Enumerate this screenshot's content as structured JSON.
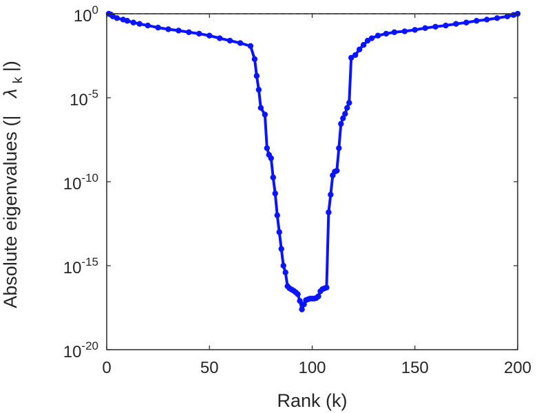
{
  "chart_data": {
    "type": "line",
    "title": "",
    "xlabel": "Rank (k)",
    "ylabel_main": "Absolute eigenvalues (|",
    "ylabel_symbol": "λ",
    "ylabel_sub": "k",
    "ylabel_tail": "|)",
    "xlim": [
      0,
      200
    ],
    "ylim": [
      1e-20,
      1
    ],
    "yscale": "log",
    "x_ticks": [
      0,
      50,
      100,
      150,
      200
    ],
    "y_ticks": [
      {
        "value": 1e-20,
        "base": "10",
        "exp": "-20"
      },
      {
        "value": 1e-15,
        "base": "10",
        "exp": "-15"
      },
      {
        "value": 1e-10,
        "base": "10",
        "exp": "-10"
      },
      {
        "value": 1e-05,
        "base": "10",
        "exp": "-5"
      },
      {
        "value": 1,
        "base": "10",
        "exp": "0"
      }
    ],
    "grid": false,
    "reference_line": {
      "y": 1,
      "style": "dashed",
      "color": "#000000"
    },
    "series": [
      {
        "color": "#0a14ff",
        "marker": "circle",
        "points": [
          [
            1,
            1.0
          ],
          [
            2,
            0.9
          ],
          [
            3,
            0.7
          ],
          [
            5,
            0.55
          ],
          [
            8,
            0.45
          ],
          [
            10,
            0.38
          ],
          [
            13,
            0.3
          ],
          [
            16,
            0.25
          ],
          [
            20,
            0.2
          ],
          [
            25,
            0.15
          ],
          [
            30,
            0.12
          ],
          [
            35,
            0.1
          ],
          [
            40,
            0.08
          ],
          [
            45,
            0.065
          ],
          [
            50,
            0.05
          ],
          [
            55,
            0.035
          ],
          [
            60,
            0.025
          ],
          [
            65,
            0.018
          ],
          [
            70,
            0.012
          ],
          [
            72,
            0.002
          ],
          [
            73,
            0.0002
          ],
          [
            74,
            3e-05
          ],
          [
            75,
            2.5e-06
          ],
          [
            77,
            1e-06
          ],
          [
            78,
            1e-08
          ],
          [
            79,
            4e-09
          ],
          [
            80,
            2.5e-09
          ],
          [
            81,
            1.8e-10
          ],
          [
            82,
            2e-11
          ],
          [
            83,
            1e-12
          ],
          [
            84,
            1e-13
          ],
          [
            85,
            1e-14
          ],
          [
            86,
            1e-15
          ],
          [
            87,
            4e-16
          ],
          [
            88,
            6e-17
          ],
          [
            89,
            4.5e-17
          ],
          [
            90,
            3.8e-17
          ],
          [
            91,
            3.2e-17
          ],
          [
            92,
            2.6e-17
          ],
          [
            93,
            2e-17
          ],
          [
            94,
            8e-18
          ],
          [
            95,
            2.5e-18
          ],
          [
            96,
            5e-18
          ],
          [
            97,
            9e-18
          ],
          [
            98,
            1e-17
          ],
          [
            99,
            1.1e-17
          ],
          [
            100,
            1.1e-17
          ],
          [
            101,
            1.1e-17
          ],
          [
            102,
            1.2e-17
          ],
          [
            103,
            1.5e-17
          ],
          [
            104,
            3e-17
          ],
          [
            105,
            4e-17
          ],
          [
            106,
            4.5e-17
          ],
          [
            107,
            5e-17
          ],
          [
            108,
            1.5e-12
          ],
          [
            109,
            1.7e-11
          ],
          [
            110,
            2.4e-10
          ],
          [
            111,
            4e-10
          ],
          [
            112,
            4.5e-10
          ],
          [
            113,
            1e-08
          ],
          [
            114,
            2.8e-07
          ],
          [
            115,
            6e-07
          ],
          [
            116,
            1.1e-06
          ],
          [
            117,
            2.5e-06
          ],
          [
            118,
            5e-06
          ],
          [
            119,
            0.0024
          ],
          [
            121,
            0.0035
          ],
          [
            123,
            0.0075
          ],
          [
            125,
            0.014
          ],
          [
            127,
            0.025
          ],
          [
            129,
            0.035
          ],
          [
            132,
            0.05
          ],
          [
            136,
            0.065
          ],
          [
            140,
            0.08
          ],
          [
            145,
            0.09
          ],
          [
            150,
            0.11
          ],
          [
            155,
            0.14
          ],
          [
            160,
            0.17
          ],
          [
            165,
            0.2
          ],
          [
            170,
            0.25
          ],
          [
            175,
            0.3
          ],
          [
            180,
            0.38
          ],
          [
            185,
            0.45
          ],
          [
            190,
            0.55
          ],
          [
            195,
            0.7
          ],
          [
            198,
            0.85
          ],
          [
            200,
            1.0
          ]
        ]
      }
    ]
  }
}
